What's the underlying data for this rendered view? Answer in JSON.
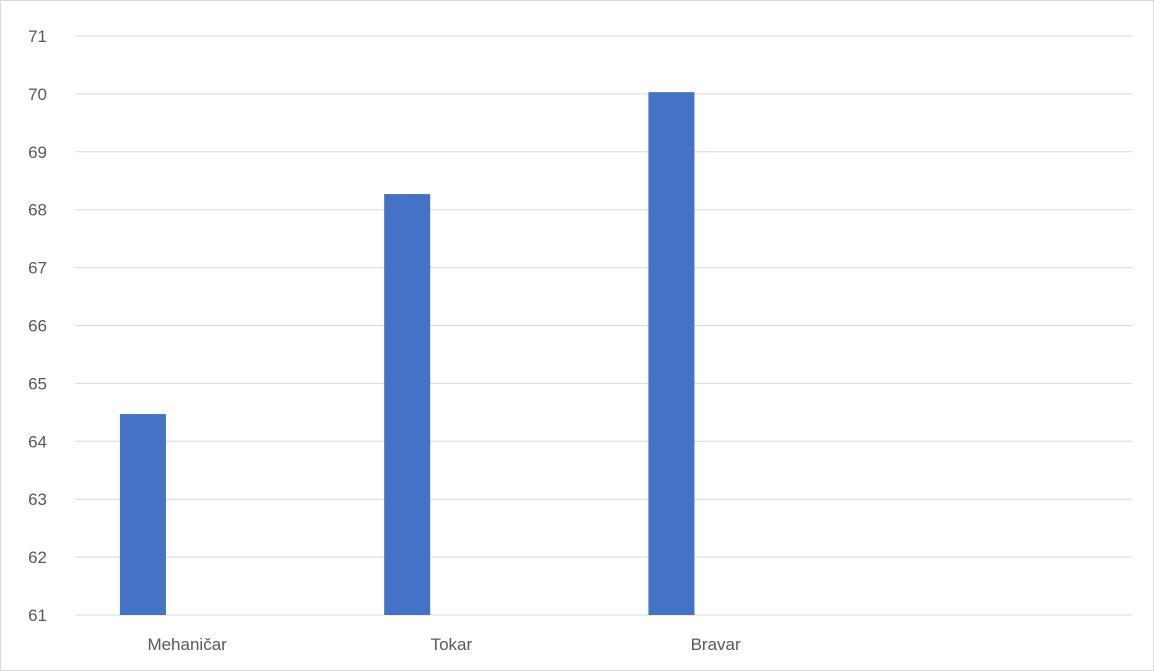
{
  "chart_data": {
    "type": "bar",
    "categories": [
      "Mehaničar",
      "Tokar",
      "Bravar"
    ],
    "series": [
      {
        "values": [
          64.47,
          68.27,
          70.03
        ],
        "color": "#4472c4"
      }
    ],
    "title": "",
    "xlabel": "",
    "ylabel": "",
    "ylim": [
      61,
      71
    ],
    "yticks": [
      61,
      62,
      63,
      64,
      65,
      66,
      67,
      68,
      69,
      70,
      71
    ],
    "grid": true,
    "legend": "none",
    "gridline_color": "#d9d9d9",
    "axis_text_color": "#595959"
  }
}
